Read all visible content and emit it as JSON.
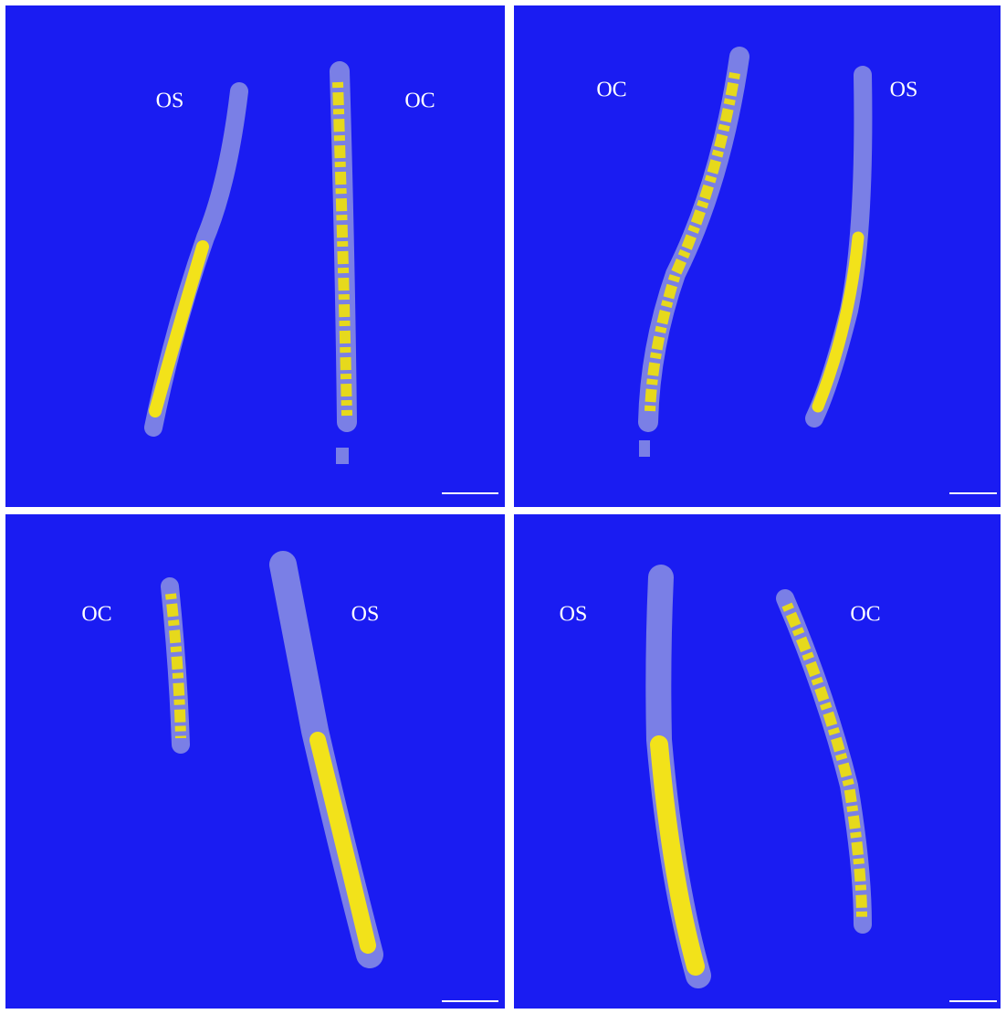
{
  "panels": [
    {
      "labels": [
        "OS",
        "OC"
      ]
    },
    {
      "labels": [
        "OC",
        "OS"
      ]
    },
    {
      "labels": [
        "OC",
        "OS"
      ]
    },
    {
      "labels": [
        "OS",
        "OC"
      ]
    }
  ]
}
